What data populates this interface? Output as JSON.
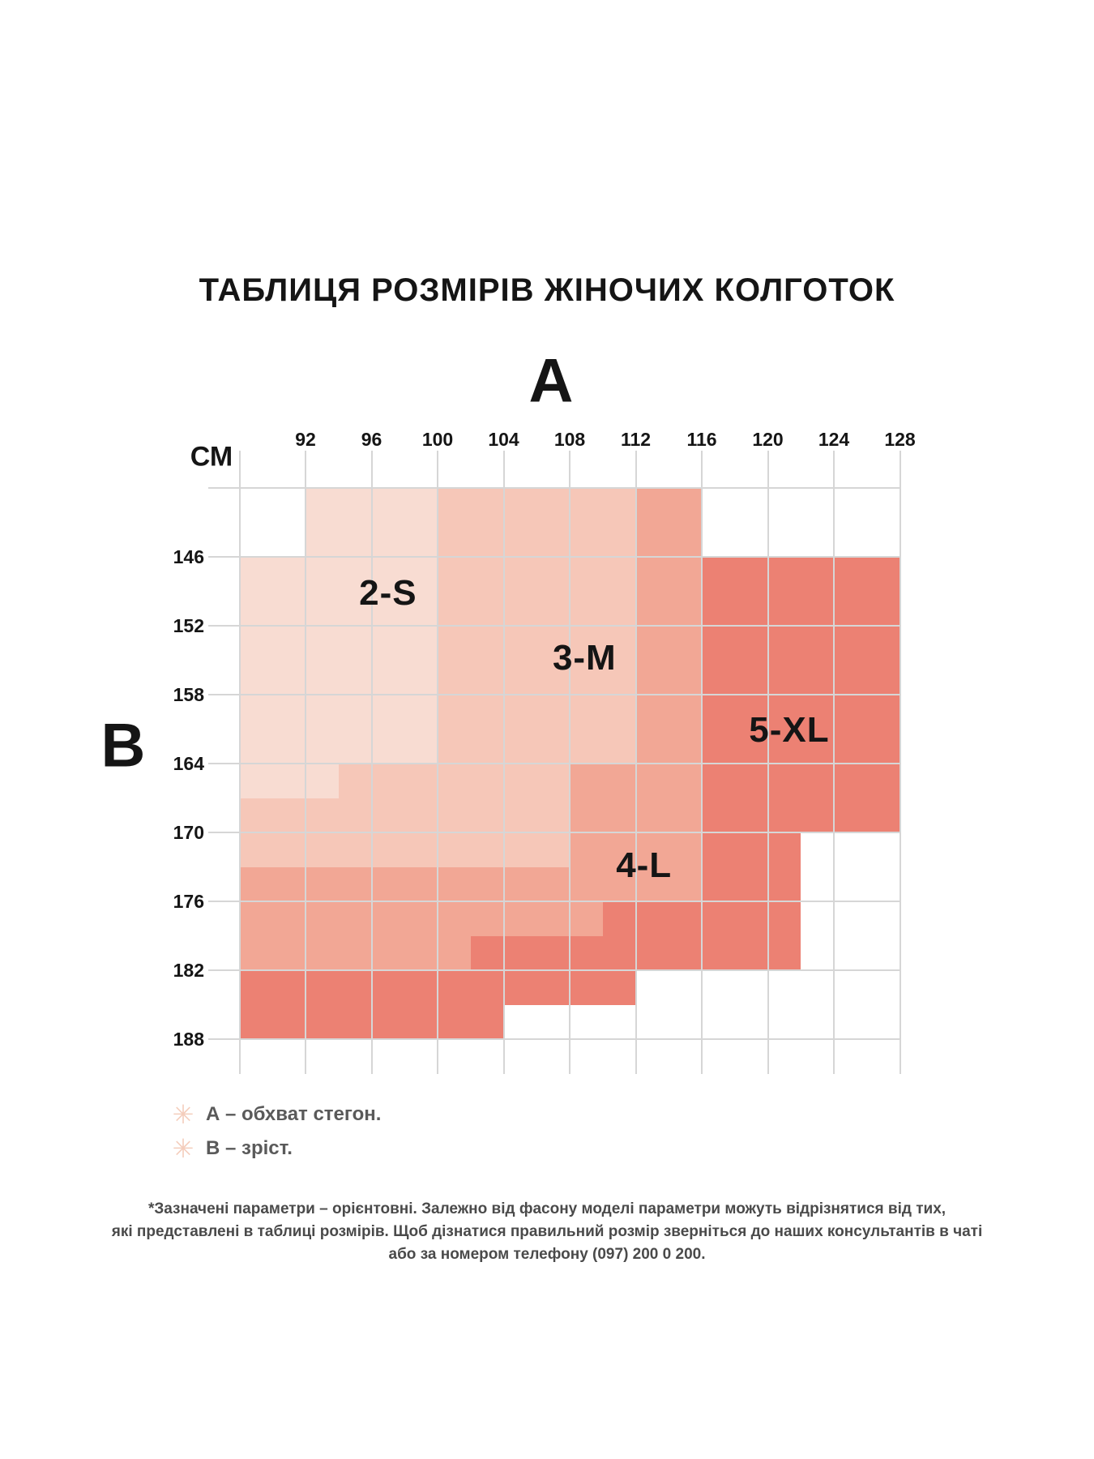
{
  "page": {
    "title": "ТАБЛИЦЯ РОЗМІРІВ ЖІНОЧИХ КОЛГОТОК"
  },
  "chart_data": {
    "type": "heatmap",
    "title": "ТАБЛИЦЯ РОЗМІРІВ ЖІНОЧИХ КОЛГОТОК",
    "x_axis": {
      "label": "А",
      "unit": "СМ",
      "range": [
        88,
        128
      ],
      "ticks": [
        92,
        96,
        100,
        104,
        108,
        112,
        116,
        120,
        124,
        128
      ]
    },
    "y_axis": {
      "label": "В",
      "range": [
        140,
        191
      ],
      "ticks": [
        146,
        152,
        158,
        164,
        170,
        176,
        182,
        188
      ]
    },
    "grid": {
      "color": "#d6d6d6",
      "x_lines": [
        88,
        92,
        96,
        100,
        104,
        108,
        112,
        116,
        120,
        124,
        128
      ],
      "y_lines": [
        140,
        146,
        152,
        158,
        164,
        170,
        176,
        182,
        188
      ]
    },
    "sizes": [
      {
        "label": "2-S",
        "color": "#f8dcd2",
        "label_at": [
          97.0,
          149.2
        ],
        "rects": [
          [
            92,
            140,
            100,
            146
          ],
          [
            88,
            146,
            100,
            164
          ],
          [
            88,
            164,
            94,
            167
          ]
        ]
      },
      {
        "label": "3-M",
        "color": "#f6c7b8",
        "label_at": [
          108.9,
          154.8
        ],
        "rects": [
          [
            100,
            140,
            112,
            164
          ],
          [
            94,
            164,
            108,
            170
          ],
          [
            88,
            167,
            94,
            170
          ],
          [
            88,
            170,
            108,
            173
          ]
        ]
      },
      {
        "label": "4-L",
        "color": "#f2a795",
        "label_at": [
          112.5,
          172.9
        ],
        "rects": [
          [
            112,
            140,
            116,
            176
          ],
          [
            108,
            164,
            112,
            176
          ],
          [
            88,
            173,
            108,
            176
          ],
          [
            88,
            176,
            102,
            182
          ],
          [
            102,
            176,
            110,
            179
          ]
        ]
      },
      {
        "label": "5-XL",
        "color": "#ec8173",
        "label_at": [
          121.3,
          161.1
        ],
        "rects": [
          [
            116,
            146,
            128,
            170
          ],
          [
            116,
            170,
            122,
            182
          ],
          [
            110,
            176,
            116,
            182
          ],
          [
            102,
            179,
            110,
            182
          ],
          [
            88,
            182,
            104,
            188
          ],
          [
            104,
            182,
            112,
            185
          ]
        ]
      }
    ]
  },
  "legend": {
    "icon_color": "#f4cdbc",
    "items": [
      {
        "icon": "asterisk-icon",
        "glyph": "✳",
        "text": "А – обхват стегон."
      },
      {
        "icon": "asterisk-icon",
        "glyph": "✳",
        "text": "В – зріст."
      }
    ]
  },
  "footnote": {
    "lines": [
      "*Зазначені параметри – орієнтовні. Залежно від фасону моделі параметри можуть відрізнятися від тих,",
      "які представлені в таблиці розмірів. Щоб дізнатися правильний розмір зверніться до наших консультантів в чаті",
      "або за номером телефону (097) 200 0 200."
    ]
  }
}
